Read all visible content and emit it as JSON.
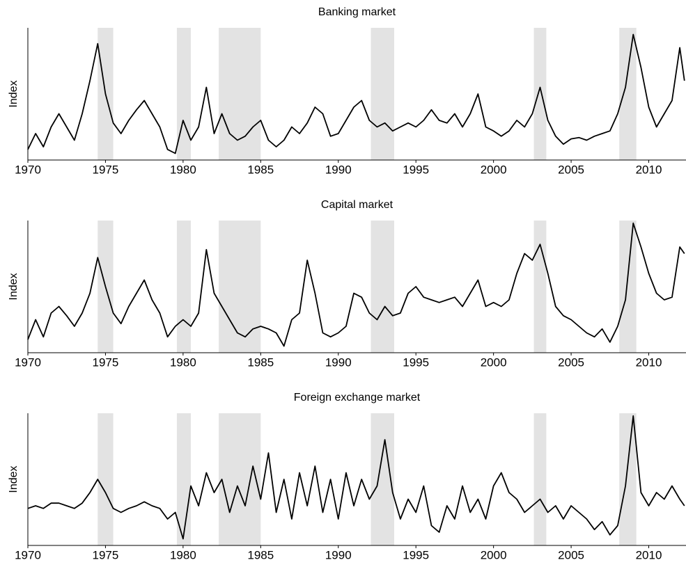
{
  "chart_data": [
    {
      "type": "line",
      "title": "Banking market",
      "ylabel": "Index",
      "color": "#000000",
      "shade_color": "#e3e3e3",
      "xlim": [
        1970,
        2012.4
      ],
      "xticks": [
        1970,
        1975,
        1980,
        1985,
        1990,
        1995,
        2000,
        2005,
        2010
      ],
      "ylim": [
        0,
        100
      ],
      "shaded_periods": [
        [
          1974.5,
          1975.5
        ],
        [
          1979.6,
          1980.5
        ],
        [
          1982.3,
          1985.0
        ],
        [
          1992.1,
          1993.6
        ],
        [
          2002.6,
          2003.4
        ],
        [
          2008.1,
          2009.2
        ]
      ],
      "x": [
        1970,
        1970.5,
        1971,
        1971.5,
        1972,
        1972.5,
        1973,
        1973.5,
        1974,
        1974.5,
        1975,
        1975.5,
        1976,
        1976.5,
        1977,
        1977.5,
        1978,
        1978.5,
        1979,
        1979.5,
        1980,
        1980.5,
        1981,
        1981.5,
        1982,
        1982.5,
        1983,
        1983.5,
        1984,
        1984.5,
        1985,
        1985.5,
        1986,
        1986.5,
        1987,
        1987.5,
        1988,
        1988.5,
        1989,
        1989.5,
        1990,
        1990.5,
        1991,
        1991.5,
        1992,
        1992.5,
        1993,
        1993.5,
        1994,
        1994.5,
        1995,
        1995.5,
        1996,
        1996.5,
        1997,
        1997.5,
        1998,
        1998.5,
        1999,
        1999.5,
        2000,
        2000.5,
        2001,
        2001.5,
        2002,
        2002.5,
        2003,
        2003.5,
        2004,
        2004.5,
        2005,
        2005.5,
        2006,
        2006.5,
        2007,
        2007.5,
        2008,
        2008.5,
        2009,
        2009.5,
        2010,
        2010.5,
        2011,
        2011.5,
        2012,
        2012.3
      ],
      "values": [
        8,
        20,
        10,
        25,
        35,
        25,
        15,
        35,
        60,
        88,
        50,
        28,
        20,
        30,
        38,
        45,
        35,
        25,
        8,
        5,
        30,
        15,
        25,
        55,
        20,
        35,
        20,
        15,
        18,
        25,
        30,
        15,
        10,
        15,
        25,
        20,
        28,
        40,
        35,
        18,
        20,
        30,
        40,
        45,
        30,
        25,
        28,
        22,
        25,
        28,
        25,
        30,
        38,
        30,
        28,
        35,
        25,
        35,
        50,
        25,
        22,
        18,
        22,
        30,
        25,
        35,
        55,
        30,
        18,
        12,
        16,
        17,
        15,
        18,
        20,
        22,
        35,
        55,
        95,
        70,
        40,
        25,
        35,
        45,
        85,
        60
      ]
    },
    {
      "type": "line",
      "title": "Capital market",
      "ylabel": "Index",
      "color": "#000000",
      "shade_color": "#e3e3e3",
      "xlim": [
        1970,
        2012.4
      ],
      "xticks": [
        1970,
        1975,
        1980,
        1985,
        1990,
        1995,
        2000,
        2005,
        2010
      ],
      "ylim": [
        0,
        100
      ],
      "shaded_periods": [
        [
          1974.5,
          1975.5
        ],
        [
          1979.6,
          1980.5
        ],
        [
          1982.3,
          1985.0
        ],
        [
          1992.1,
          1993.6
        ],
        [
          2002.6,
          2003.4
        ],
        [
          2008.1,
          2009.2
        ]
      ],
      "x": [
        1970,
        1970.5,
        1971,
        1971.5,
        1972,
        1972.5,
        1973,
        1973.5,
        1974,
        1974.5,
        1975,
        1975.5,
        1976,
        1976.5,
        1977,
        1977.5,
        1978,
        1978.5,
        1979,
        1979.5,
        1980,
        1980.5,
        1981,
        1981.5,
        1982,
        1982.5,
        1983,
        1983.5,
        1984,
        1984.5,
        1985,
        1985.5,
        1986,
        1986.5,
        1987,
        1987.5,
        1988,
        1988.5,
        1989,
        1989.5,
        1990,
        1990.5,
        1991,
        1991.5,
        1992,
        1992.5,
        1993,
        1993.5,
        1994,
        1994.5,
        1995,
        1995.5,
        1996,
        1996.5,
        1997,
        1997.5,
        1998,
        1998.5,
        1999,
        1999.5,
        2000,
        2000.5,
        2001,
        2001.5,
        2002,
        2002.5,
        2003,
        2003.5,
        2004,
        2004.5,
        2005,
        2005.5,
        2006,
        2006.5,
        2007,
        2007.5,
        2008,
        2008.5,
        2009,
        2009.5,
        2010,
        2010.5,
        2011,
        2011.5,
        2012,
        2012.3
      ],
      "values": [
        10,
        25,
        12,
        30,
        35,
        28,
        20,
        30,
        45,
        72,
        50,
        30,
        22,
        35,
        45,
        55,
        40,
        30,
        12,
        20,
        25,
        20,
        30,
        78,
        45,
        35,
        25,
        15,
        12,
        18,
        20,
        18,
        15,
        5,
        25,
        30,
        70,
        45,
        15,
        12,
        15,
        20,
        45,
        42,
        30,
        25,
        35,
        28,
        30,
        45,
        50,
        42,
        40,
        38,
        40,
        42,
        35,
        45,
        55,
        35,
        38,
        35,
        40,
        60,
        75,
        70,
        82,
        60,
        35,
        28,
        25,
        20,
        15,
        12,
        18,
        8,
        20,
        40,
        98,
        80,
        60,
        45,
        40,
        42,
        80,
        75
      ]
    },
    {
      "type": "line",
      "title": "Foreign exchange market",
      "ylabel": "Index",
      "color": "#000000",
      "shade_color": "#e3e3e3",
      "xlim": [
        1970,
        2012.4
      ],
      "xticks": [
        1970,
        1975,
        1980,
        1985,
        1990,
        1995,
        2000,
        2005,
        2010
      ],
      "ylim": [
        0,
        100
      ],
      "shaded_periods": [
        [
          1974.5,
          1975.5
        ],
        [
          1979.6,
          1980.5
        ],
        [
          1982.3,
          1985.0
        ],
        [
          1992.1,
          1993.6
        ],
        [
          2002.6,
          2003.4
        ],
        [
          2008.1,
          2009.2
        ]
      ],
      "x": [
        1970,
        1970.5,
        1971,
        1971.5,
        1972,
        1972.5,
        1973,
        1973.5,
        1974,
        1974.5,
        1975,
        1975.5,
        1976,
        1976.5,
        1977,
        1977.5,
        1978,
        1978.5,
        1979,
        1979.5,
        1980,
        1980.5,
        1981,
        1981.5,
        1982,
        1982.5,
        1983,
        1983.5,
        1984,
        1984.5,
        1985,
        1985.5,
        1986,
        1986.5,
        1987,
        1987.5,
        1988,
        1988.5,
        1989,
        1989.5,
        1990,
        1990.5,
        1991,
        1991.5,
        1992,
        1992.5,
        1993,
        1993.5,
        1994,
        1994.5,
        1995,
        1995.5,
        1996,
        1996.5,
        1997,
        1997.5,
        1998,
        1998.5,
        1999,
        1999.5,
        2000,
        2000.5,
        2001,
        2001.5,
        2002,
        2002.5,
        2003,
        2003.5,
        2004,
        2004.5,
        2005,
        2005.5,
        2006,
        2006.5,
        2007,
        2007.5,
        2008,
        2008.5,
        2009,
        2009.5,
        2010,
        2010.5,
        2011,
        2011.5,
        2012,
        2012.3
      ],
      "values": [
        28,
        30,
        28,
        32,
        32,
        30,
        28,
        32,
        40,
        50,
        40,
        28,
        25,
        28,
        30,
        33,
        30,
        28,
        20,
        25,
        5,
        45,
        30,
        55,
        40,
        50,
        25,
        45,
        30,
        60,
        35,
        70,
        25,
        50,
        20,
        55,
        30,
        60,
        25,
        50,
        20,
        55,
        30,
        50,
        35,
        45,
        80,
        40,
        20,
        35,
        25,
        45,
        15,
        10,
        30,
        20,
        45,
        25,
        35,
        20,
        45,
        55,
        40,
        35,
        25,
        30,
        35,
        25,
        30,
        20,
        30,
        25,
        20,
        12,
        18,
        8,
        15,
        45,
        98,
        40,
        30,
        40,
        35,
        45,
        35,
        30
      ]
    }
  ]
}
